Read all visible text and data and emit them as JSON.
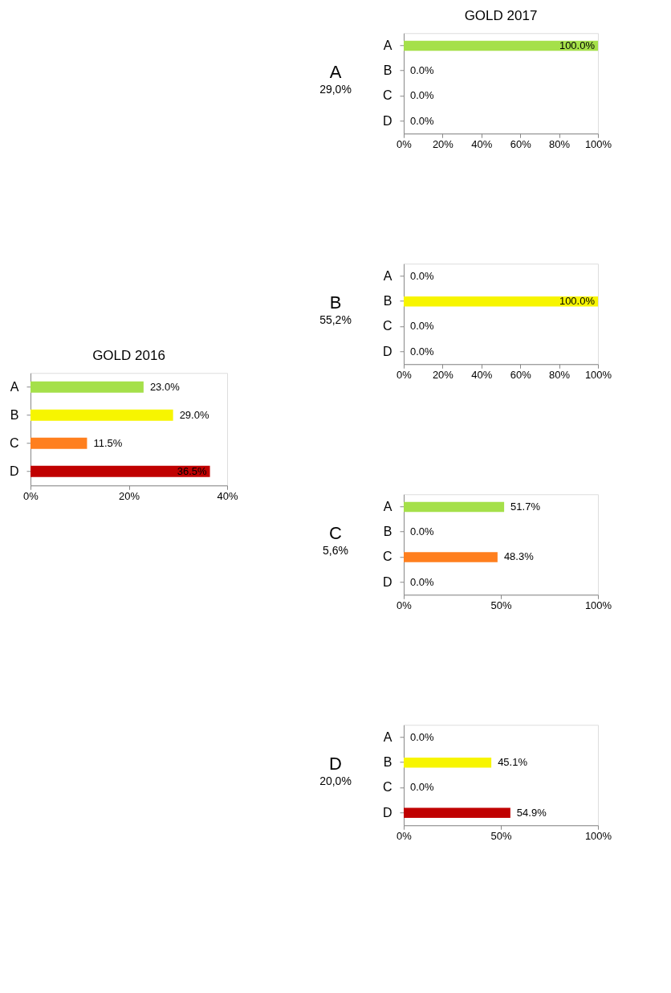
{
  "chart_data": [
    {
      "type": "bar",
      "orientation": "horizontal",
      "title": "GOLD 2016",
      "categories": [
        "A",
        "B",
        "C",
        "D"
      ],
      "values": [
        23.0,
        29.0,
        11.5,
        36.5
      ],
      "colors": [
        "#a5e04a",
        "#f7f500",
        "#ff7f1e",
        "#c00000"
      ],
      "value_labels": [
        "23.0%",
        "29.0%",
        "11.5%",
        "36.5%"
      ],
      "xlim": [
        0,
        40
      ],
      "xticks": [
        {
          "value": 0,
          "label": "0%"
        },
        {
          "value": 20,
          "label": "20%"
        },
        {
          "value": 40,
          "label": "40%"
        }
      ],
      "grid": false
    },
    {
      "type": "bar",
      "orientation": "horizontal",
      "title": "GOLD 2017",
      "ylabel": "A",
      "annotations": [
        "29,0%"
      ],
      "categories": [
        "A",
        "B",
        "C",
        "D"
      ],
      "values": [
        100.0,
        0.0,
        0.0,
        0.0
      ],
      "colors": [
        "#a5e04a",
        "#f7f500",
        "#ff7f1e",
        "#c00000"
      ],
      "value_labels": [
        "100.0%",
        "0.0%",
        "0.0%",
        "0.0%"
      ],
      "xlim": [
        0,
        100
      ],
      "xticks": [
        {
          "value": 0,
          "label": "0%"
        },
        {
          "value": 20,
          "label": "20%"
        },
        {
          "value": 40,
          "label": "40%"
        },
        {
          "value": 60,
          "label": "60%"
        },
        {
          "value": 80,
          "label": "80%"
        },
        {
          "value": 100,
          "label": "100%"
        }
      ],
      "grid": false
    },
    {
      "type": "bar",
      "orientation": "horizontal",
      "ylabel": "B",
      "annotations": [
        "55,2%"
      ],
      "categories": [
        "A",
        "B",
        "C",
        "D"
      ],
      "values": [
        0.0,
        100.0,
        0.0,
        0.0
      ],
      "colors": [
        "#a5e04a",
        "#f7f500",
        "#ff7f1e",
        "#c00000"
      ],
      "value_labels": [
        "0.0%",
        "100.0%",
        "0.0%",
        "0.0%"
      ],
      "xlim": [
        0,
        100
      ],
      "xticks": [
        {
          "value": 0,
          "label": "0%"
        },
        {
          "value": 20,
          "label": "20%"
        },
        {
          "value": 40,
          "label": "40%"
        },
        {
          "value": 60,
          "label": "60%"
        },
        {
          "value": 80,
          "label": "80%"
        },
        {
          "value": 100,
          "label": "100%"
        }
      ],
      "grid": false
    },
    {
      "type": "bar",
      "orientation": "horizontal",
      "ylabel": "C",
      "annotations": [
        "5,6%"
      ],
      "categories": [
        "A",
        "B",
        "C",
        "D"
      ],
      "values": [
        51.7,
        0.0,
        48.3,
        0.0
      ],
      "colors": [
        "#a5e04a",
        "#f7f500",
        "#ff7f1e",
        "#c00000"
      ],
      "value_labels": [
        "51.7%",
        "0.0%",
        "48.3%",
        "0.0%"
      ],
      "xlim": [
        0,
        100
      ],
      "xticks": [
        {
          "value": 0,
          "label": "0%"
        },
        {
          "value": 50,
          "label": "50%"
        },
        {
          "value": 100,
          "label": "100%"
        }
      ],
      "grid": false
    },
    {
      "type": "bar",
      "orientation": "horizontal",
      "ylabel": "D",
      "annotations": [
        "20,0%"
      ],
      "categories": [
        "A",
        "B",
        "C",
        "D"
      ],
      "values": [
        0.0,
        45.1,
        0.0,
        54.9
      ],
      "colors": [
        "#a5e04a",
        "#f7f500",
        "#ff7f1e",
        "#c00000"
      ],
      "value_labels": [
        "0.0%",
        "45.1%",
        "0.0%",
        "54.9%"
      ],
      "xlim": [
        0,
        100
      ],
      "xticks": [
        {
          "value": 0,
          "label": "0%"
        },
        {
          "value": 50,
          "label": "50%"
        },
        {
          "value": 100,
          "label": "100%"
        }
      ],
      "grid": false
    }
  ]
}
